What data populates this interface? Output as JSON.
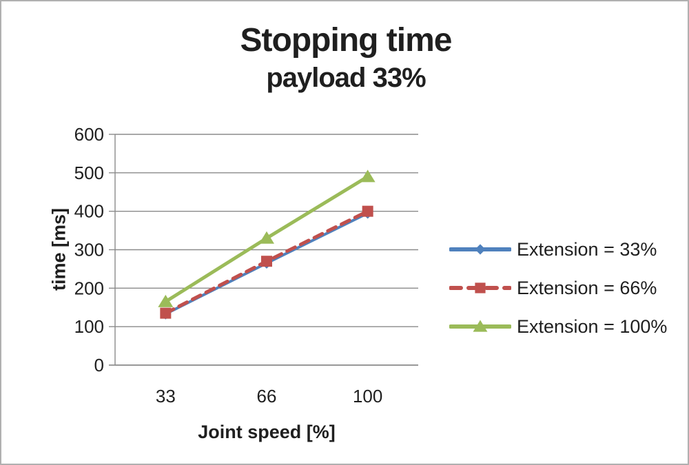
{
  "chart_data": {
    "type": "line",
    "title": "Stopping time",
    "subtitle": "payload 33%",
    "xlabel": "Joint speed [%]",
    "ylabel": "time [ms]",
    "categories": [
      "33",
      "66",
      "100"
    ],
    "ylim": [
      0,
      600
    ],
    "ytick_step": 100,
    "grid": true,
    "legend_position": "right",
    "axis_color": "#8a8a8a",
    "text_color": "#1f1f1f",
    "series": [
      {
        "name": "Extension = 33%",
        "values": [
          133,
          265,
          395
        ],
        "color": "#4f81bd",
        "marker": "diamond",
        "line_style": "solid",
        "line_width": 4
      },
      {
        "name": "Extension = 66%",
        "values": [
          135,
          270,
          400
        ],
        "color": "#c0504d",
        "marker": "square",
        "line_style": "dashed",
        "line_width": 5
      },
      {
        "name": "Extension = 100%",
        "values": [
          165,
          330,
          490
        ],
        "color": "#9bbb59",
        "marker": "triangle",
        "line_style": "solid",
        "line_width": 5
      }
    ]
  }
}
